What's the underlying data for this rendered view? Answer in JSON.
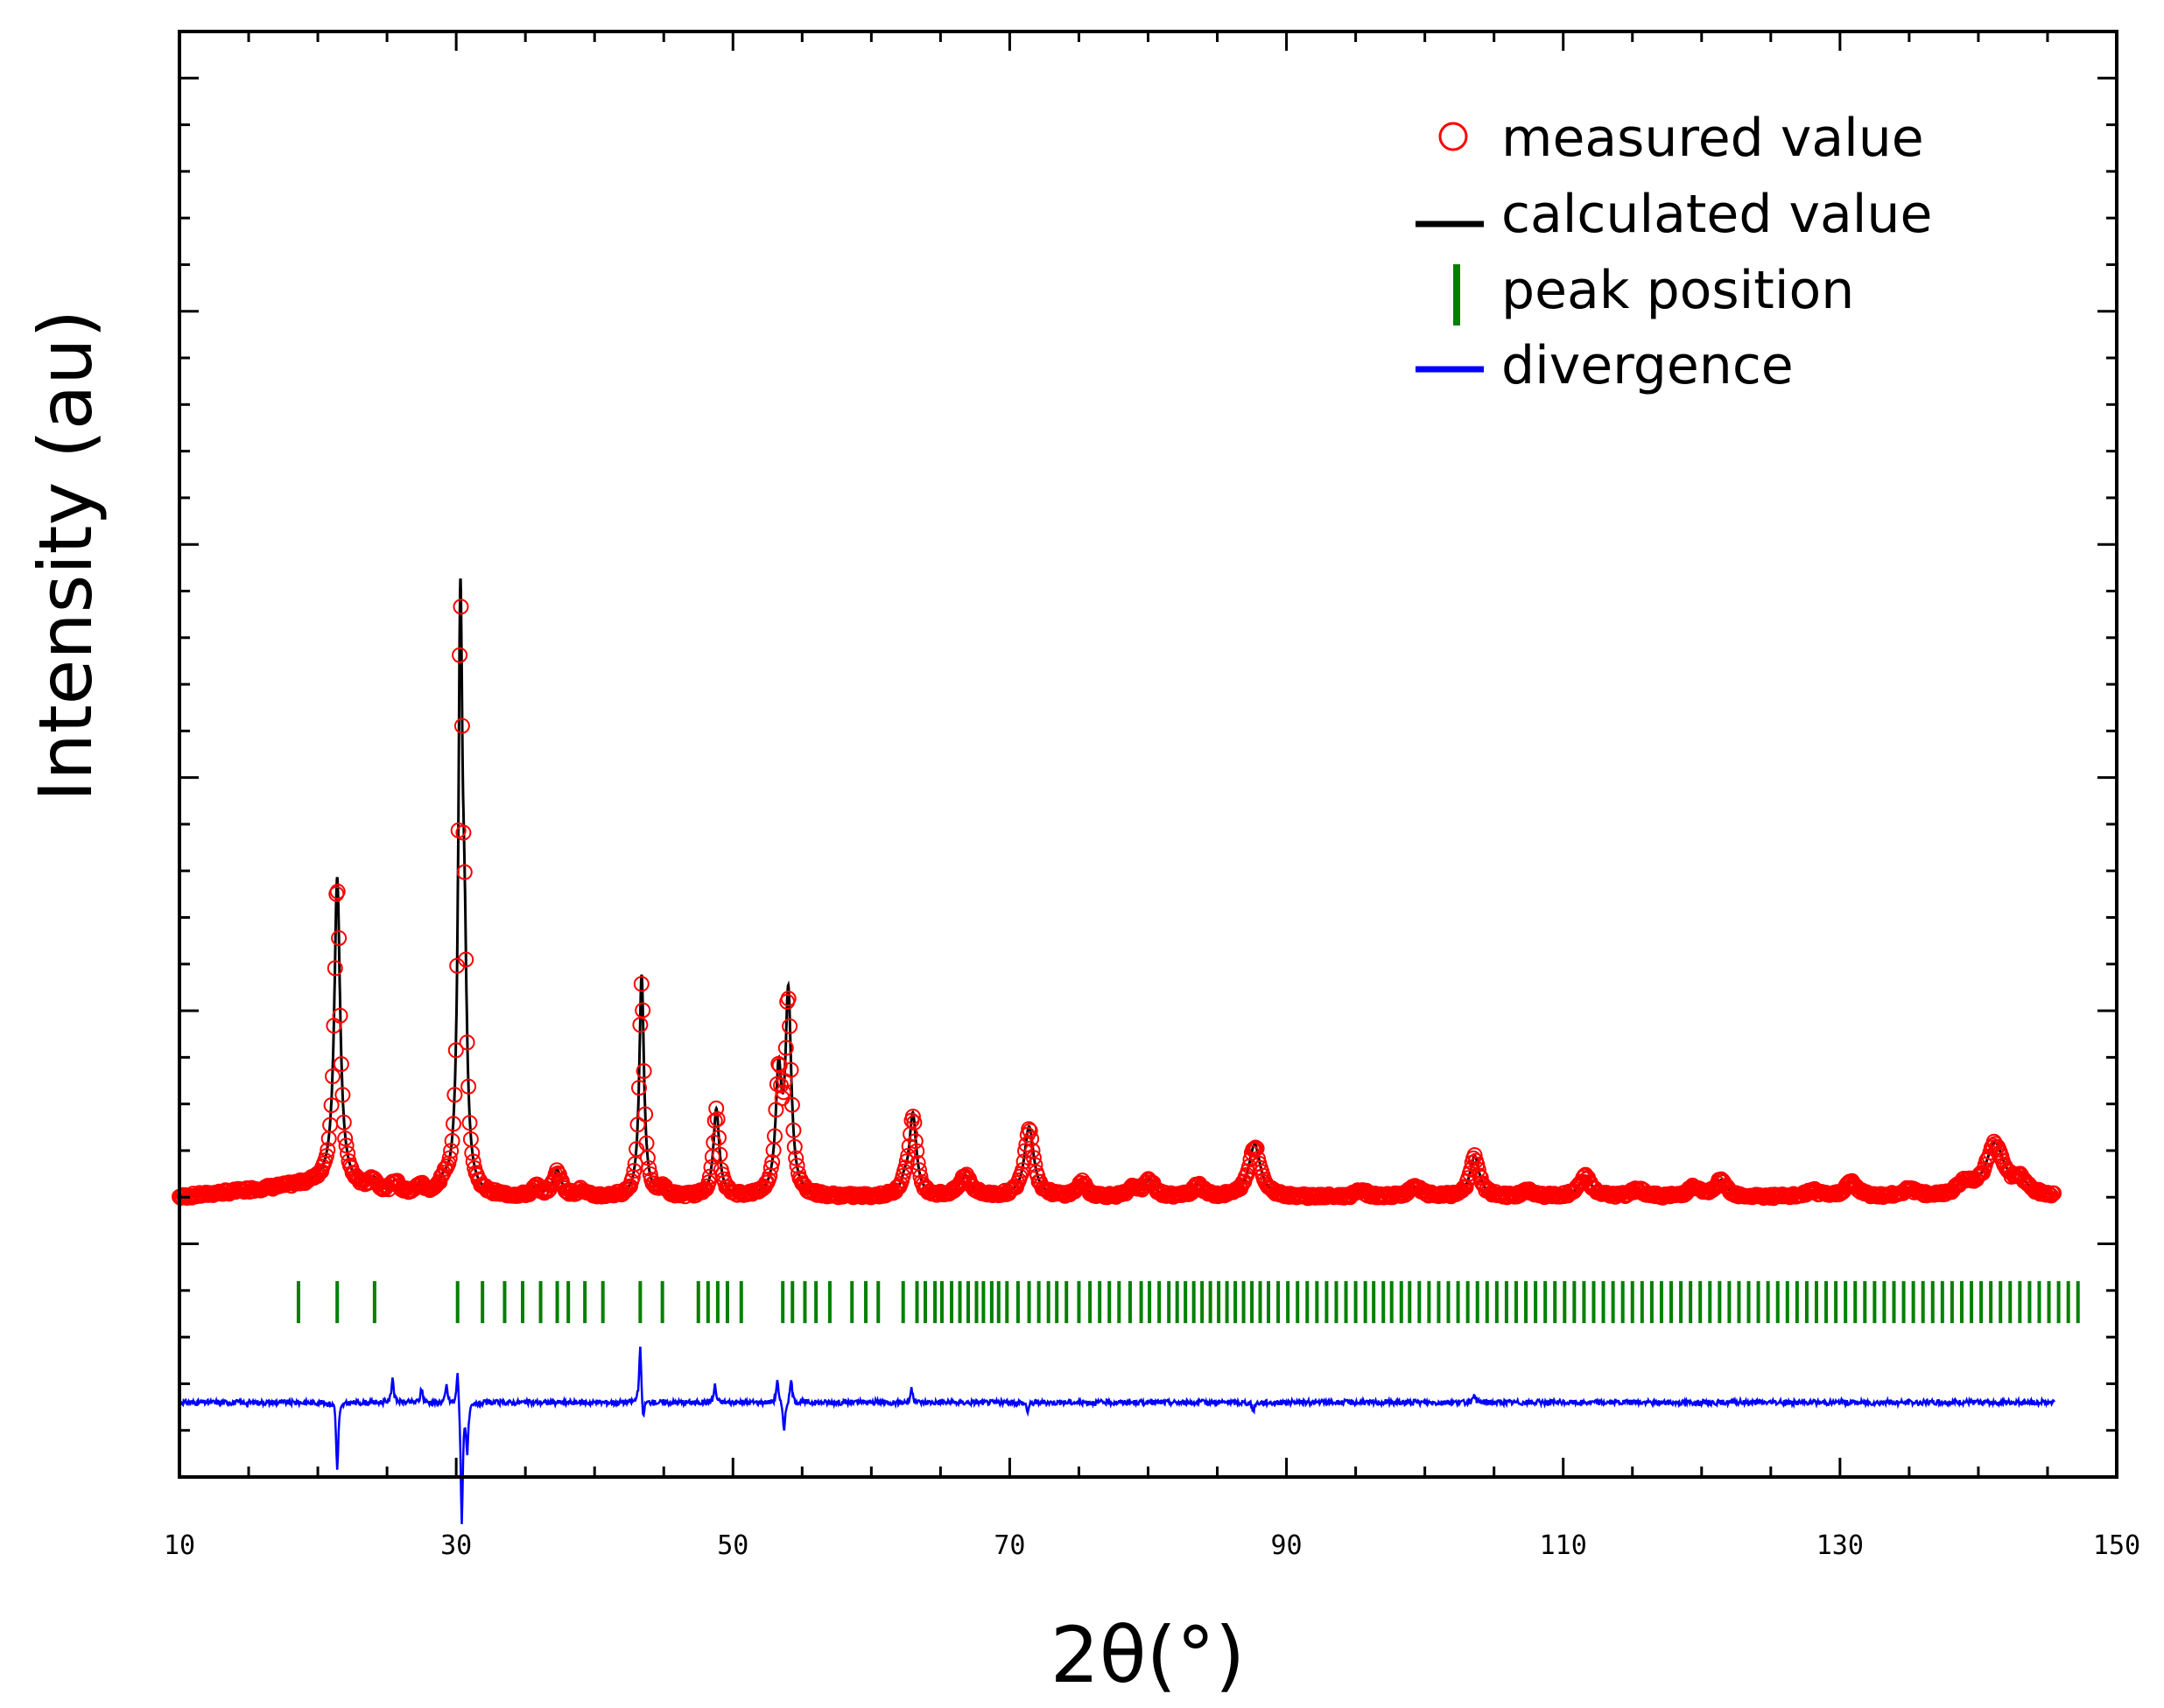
{
  "chart_data": {
    "type": "line",
    "title": "",
    "xlabel": "2θ(°)",
    "ylabel": "Intensity (au)",
    "xlim": [
      10,
      150
    ],
    "ylim": [
      -24,
      100
    ],
    "grid": false,
    "legend_position": "top-right",
    "x_ticks": [
      "10",
      "30",
      "50",
      "70",
      "90",
      "110",
      "130",
      "150"
    ],
    "legend": [
      {
        "label": "measured value",
        "color": "#ff0000",
        "marker": "circle"
      },
      {
        "label": "calculated value",
        "color": "#000000",
        "marker": "line"
      },
      {
        "label": "peak position",
        "color": "#008000",
        "marker": "vbar"
      },
      {
        "label": "divergence",
        "color": "#0000ff",
        "marker": "line"
      }
    ],
    "baseline": 0,
    "peaks": [
      {
        "x": 21.4,
        "y": 26,
        "w": 0.25
      },
      {
        "x": 24.0,
        "y": 1,
        "w": 0.3
      },
      {
        "x": 25.6,
        "y": 1,
        "w": 0.3
      },
      {
        "x": 27.4,
        "y": 0.8,
        "w": 0.3
      },
      {
        "x": 29.1,
        "y": 0.8,
        "w": 0.3
      },
      {
        "x": 30.3,
        "y": 48,
        "w": 0.18
      },
      {
        "x": 30.6,
        "y": 16,
        "w": 0.2
      },
      {
        "x": 35.8,
        "y": 0.8,
        "w": 0.3
      },
      {
        "x": 37.3,
        "y": 2.2,
        "w": 0.35
      },
      {
        "x": 39.0,
        "y": 0.5,
        "w": 0.3
      },
      {
        "x": 43.4,
        "y": 19,
        "w": 0.2
      },
      {
        "x": 44.9,
        "y": 0.7,
        "w": 0.3
      },
      {
        "x": 48.8,
        "y": 7.5,
        "w": 0.25
      },
      {
        "x": 53.3,
        "y": 10,
        "w": 0.25
      },
      {
        "x": 54.0,
        "y": 17,
        "w": 0.25
      },
      {
        "x": 62.4,
        "y": 1,
        "w": 0.3
      },
      {
        "x": 63.0,
        "y": 7,
        "w": 0.3
      },
      {
        "x": 66.8,
        "y": 1.8,
        "w": 0.5
      },
      {
        "x": 71.4,
        "y": 6,
        "w": 0.4
      },
      {
        "x": 75.2,
        "y": 1.2,
        "w": 0.4
      },
      {
        "x": 79.0,
        "y": 0.8,
        "w": 0.4
      },
      {
        "x": 80.1,
        "y": 1.4,
        "w": 0.4
      },
      {
        "x": 83.6,
        "y": 1.1,
        "w": 0.4
      },
      {
        "x": 87.7,
        "y": 4.5,
        "w": 0.5
      },
      {
        "x": 95.4,
        "y": 0.6,
        "w": 0.4
      },
      {
        "x": 99.3,
        "y": 0.8,
        "w": 0.6
      },
      {
        "x": 103.6,
        "y": 3.5,
        "w": 0.4
      },
      {
        "x": 107.5,
        "y": 0.5,
        "w": 0.5
      },
      {
        "x": 111.6,
        "y": 1.8,
        "w": 0.5
      },
      {
        "x": 115.4,
        "y": 0.7,
        "w": 0.5
      },
      {
        "x": 119.4,
        "y": 0.8,
        "w": 0.5
      },
      {
        "x": 121.4,
        "y": 1.4,
        "w": 0.5
      },
      {
        "x": 128.0,
        "y": 0.5,
        "w": 0.5
      },
      {
        "x": 130.8,
        "y": 1.3,
        "w": 0.5
      },
      {
        "x": 135.0,
        "y": 0.7,
        "w": 0.5
      },
      {
        "x": 139.0,
        "y": 1.1,
        "w": 0.6
      },
      {
        "x": 141.2,
        "y": 4.5,
        "w": 0.8
      },
      {
        "x": 143.0,
        "y": 1.2,
        "w": 0.6
      }
    ],
    "peak_positions": [
      18.6,
      21.4,
      24.1,
      30.1,
      31.9,
      33.5,
      34.8,
      36.1,
      37.3,
      38.1,
      39.3,
      40.6,
      43.3,
      44.9,
      47.5,
      48.2,
      48.9,
      49.6,
      50.6,
      53.6,
      54.3,
      55.2,
      56.0,
      57.0,
      58.6,
      59.6,
      60.5,
      62.3,
      63.3,
      63.9,
      64.6,
      65.1,
      65.8,
      66.4,
      67.0,
      67.6,
      68.1,
      68.7,
      69.2,
      69.8,
      70.6,
      71.4,
      72.1,
      72.8,
      73.4,
      74.1,
      75.0,
      75.8,
      76.5,
      77.2,
      77.9,
      78.7,
      79.5,
      80.1,
      80.8,
      81.5,
      82.1,
      82.7,
      83.3,
      83.9,
      84.5,
      85.1,
      85.7,
      86.3,
      86.9,
      87.5,
      88.1,
      88.7,
      89.4,
      90.1,
      90.8,
      91.5,
      92.2,
      92.9,
      93.6,
      94.3,
      95.0,
      95.7,
      96.3,
      97.0,
      97.6,
      98.3,
      98.9,
      99.6,
      100.3,
      101.0,
      101.7,
      102.4,
      103.1,
      103.8,
      104.5,
      105.2,
      105.9,
      106.6,
      107.3,
      108.0,
      108.7,
      109.4,
      110.1,
      110.8,
      111.5,
      112.2,
      112.9,
      113.6,
      114.3,
      115.0,
      115.7,
      116.4,
      117.1,
      117.8,
      118.5,
      119.2,
      119.9,
      120.6,
      121.3,
      122.0,
      122.7,
      123.4,
      124.1,
      124.8,
      125.5,
      126.2,
      126.9,
      127.6,
      128.3,
      129.0,
      129.7,
      130.4,
      131.1,
      131.8,
      132.5,
      133.2,
      133.9,
      134.6,
      135.3,
      136.0,
      136.7,
      137.4,
      138.1,
      138.8,
      139.5,
      140.2,
      140.9,
      141.6,
      142.3,
      143.0,
      143.7,
      144.4,
      145.1,
      145.8,
      146.5,
      147.2
    ],
    "peak_marker_level": -9,
    "divergence_level": -17.6,
    "divergence_spikes": [
      {
        "x": 21.2,
        "y": 0.6
      },
      {
        "x": 21.4,
        "y": -6
      },
      {
        "x": 25.4,
        "y": 2.2
      },
      {
        "x": 27.5,
        "y": 1.2
      },
      {
        "x": 29.3,
        "y": 1.5
      },
      {
        "x": 30.1,
        "y": 3.5
      },
      {
        "x": 30.4,
        "y": -10.5
      },
      {
        "x": 30.8,
        "y": -4
      },
      {
        "x": 43.3,
        "y": 5
      },
      {
        "x": 43.5,
        "y": -2
      },
      {
        "x": 48.7,
        "y": 1.5
      },
      {
        "x": 53.2,
        "y": 2
      },
      {
        "x": 53.7,
        "y": -2.5
      },
      {
        "x": 54.2,
        "y": 2
      },
      {
        "x": 62.9,
        "y": 1.2
      },
      {
        "x": 71.3,
        "y": -0.8
      },
      {
        "x": 87.6,
        "y": -0.8
      },
      {
        "x": 103.6,
        "y": 0.6
      }
    ],
    "measured_x_range": [
      10,
      145.5
    ]
  }
}
